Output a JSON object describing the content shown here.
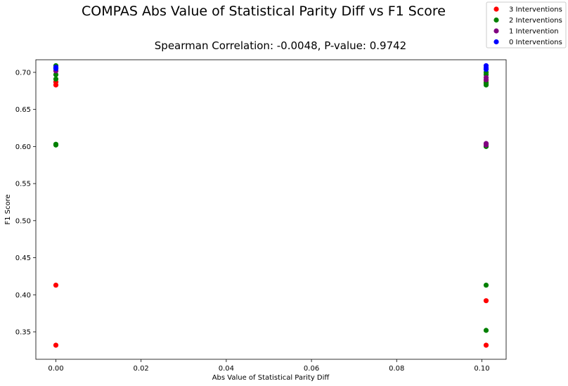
{
  "chart_data": {
    "type": "scatter",
    "title": "COMPAS Abs Value of Statistical Parity Diff vs F1 Score",
    "subtitle": "Spearman Correlation: -0.0048, P-value: 0.9742",
    "xlabel": "Abs Value of Statistical Parity Diff",
    "ylabel": "F1 Score",
    "xlim": [
      -0.0047,
      0.1057
    ],
    "ylim": [
      0.313,
      0.717
    ],
    "x_ticks": [
      0.0,
      0.02,
      0.04,
      0.06,
      0.08,
      0.1
    ],
    "x_tick_labels": [
      "0.00",
      "0.02",
      "0.04",
      "0.06",
      "0.08",
      "0.10"
    ],
    "y_ticks": [
      0.35,
      0.4,
      0.45,
      0.5,
      0.55,
      0.6,
      0.65,
      0.7
    ],
    "y_tick_labels": [
      "0.35",
      "0.40",
      "0.45",
      "0.50",
      "0.55",
      "0.60",
      "0.65",
      "0.70"
    ],
    "grid": false,
    "legend_position": "top-right",
    "series": [
      {
        "name": "3 Interventions",
        "color": "#ff0000",
        "points": [
          [
            0.0,
            0.683
          ],
          [
            0.0,
            0.687
          ],
          [
            0.0,
            0.413
          ],
          [
            0.0,
            0.332
          ],
          [
            0.101,
            0.685
          ],
          [
            0.101,
            0.689
          ],
          [
            0.101,
            0.392
          ],
          [
            0.101,
            0.332
          ]
        ]
      },
      {
        "name": "2 Interventions",
        "color": "#008000",
        "points": [
          [
            0.0,
            0.709
          ],
          [
            0.0,
            0.697
          ],
          [
            0.0,
            0.691
          ],
          [
            0.0,
            0.603
          ],
          [
            0.0,
            0.602
          ],
          [
            0.101,
            0.7
          ],
          [
            0.101,
            0.697
          ],
          [
            0.101,
            0.686
          ],
          [
            0.101,
            0.683
          ],
          [
            0.101,
            0.6
          ],
          [
            0.101,
            0.413
          ],
          [
            0.101,
            0.352
          ]
        ]
      },
      {
        "name": "1 Intervention",
        "color": "#800080",
        "points": [
          [
            0.0,
            0.706
          ],
          [
            0.0,
            0.702
          ],
          [
            0.101,
            0.693
          ],
          [
            0.101,
            0.69
          ],
          [
            0.101,
            0.604
          ],
          [
            0.101,
            0.602
          ]
        ]
      },
      {
        "name": "0 Interventions",
        "color": "#0000ff",
        "points": [
          [
            0.0,
            0.707
          ],
          [
            0.0,
            0.705
          ],
          [
            0.101,
            0.709
          ],
          [
            0.101,
            0.706
          ],
          [
            0.101,
            0.704
          ]
        ]
      }
    ]
  }
}
